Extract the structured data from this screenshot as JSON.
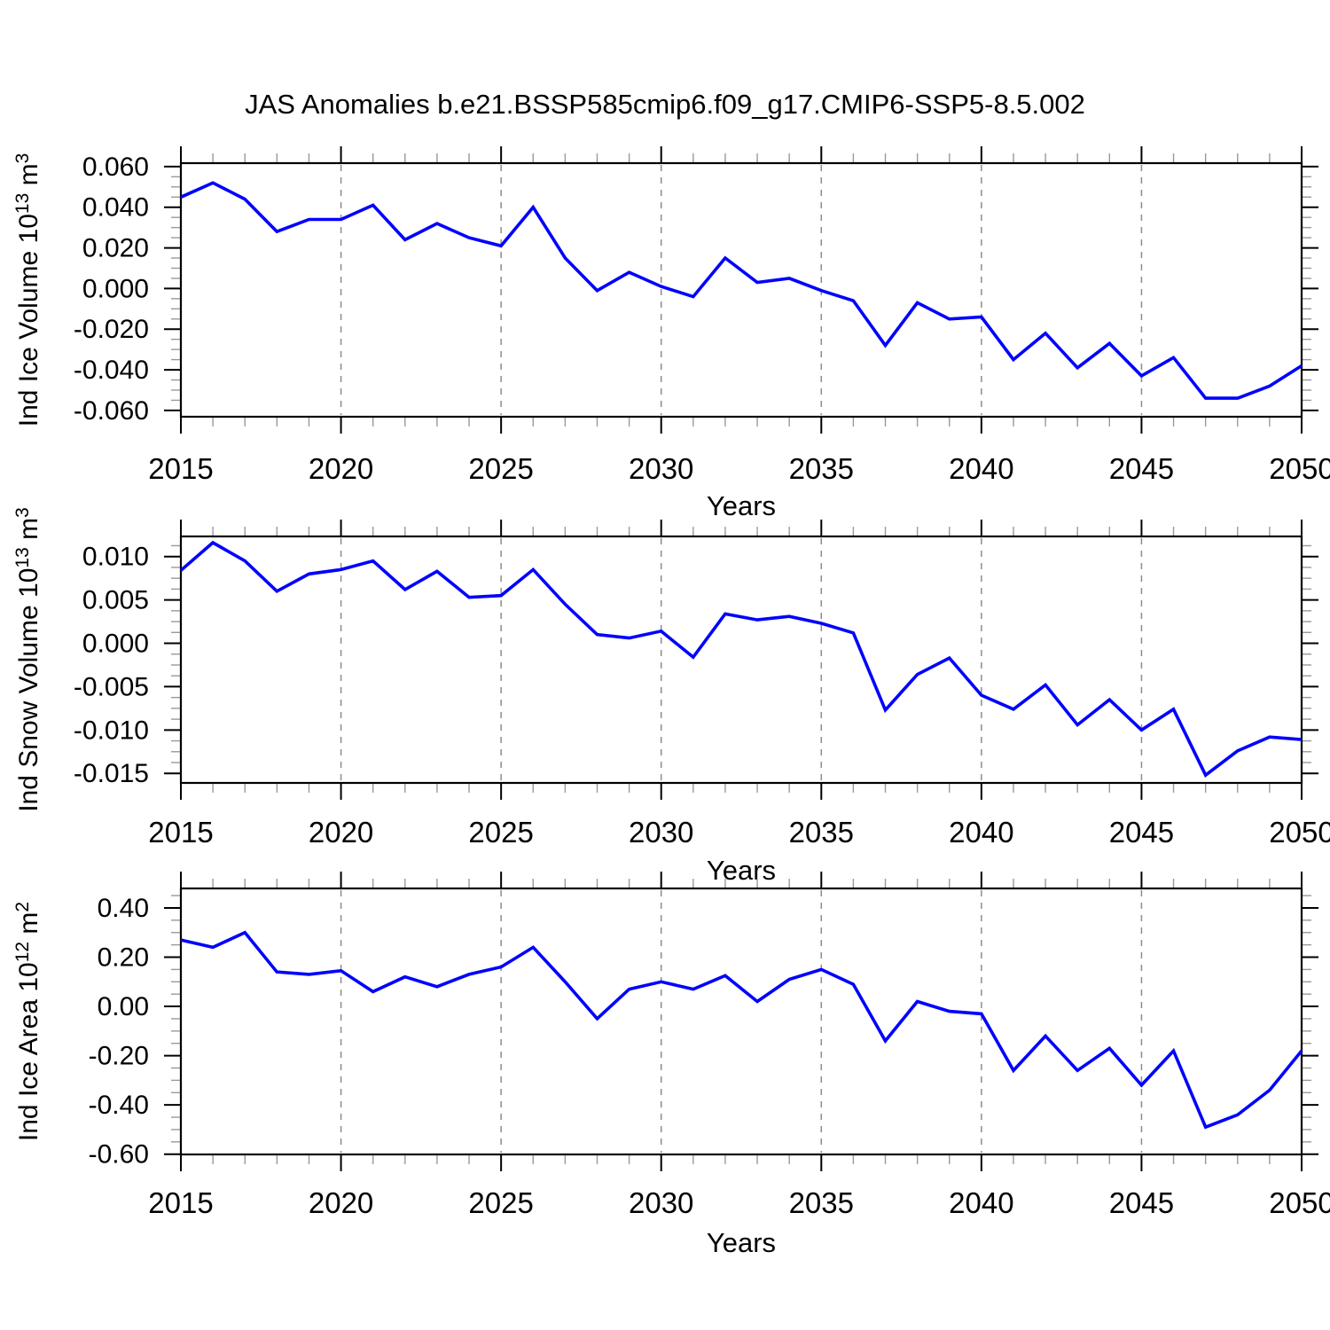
{
  "title": "JAS Anomalies b.e21.BSSP585cmip6.f09_g17.CMIP6-SSP5-8.5.002",
  "colors": {
    "line": "#0000ff",
    "frame": "#000000",
    "major_tick": "#000000",
    "minor_tick": "#999999",
    "grid_dash": "#8c8c8c",
    "text": "#000000",
    "background": "#ffffff"
  },
  "chart_data": [
    {
      "type": "line",
      "name": "ice-volume",
      "ylabel_plain": "Ind Ice Volume 10^13 m^3",
      "ylabel_parts": [
        {
          "text": "Ind Ice Volume 10",
          "sup": false
        },
        {
          "text": "13",
          "sup": true
        },
        {
          "text": " m",
          "sup": false
        },
        {
          "text": "3",
          "sup": true
        }
      ],
      "xlabel": "Years",
      "x": [
        2015,
        2016,
        2017,
        2018,
        2019,
        2020,
        2021,
        2022,
        2023,
        2024,
        2025,
        2026,
        2027,
        2028,
        2029,
        2030,
        2031,
        2032,
        2033,
        2034,
        2035,
        2036,
        2037,
        2038,
        2039,
        2040,
        2041,
        2042,
        2043,
        2044,
        2045,
        2046,
        2047,
        2048,
        2049,
        2050
      ],
      "values": [
        0.045,
        0.052,
        0.044,
        0.028,
        0.034,
        0.034,
        0.041,
        0.024,
        0.032,
        0.025,
        0.021,
        0.04,
        0.015,
        -0.001,
        0.008,
        0.001,
        -0.004,
        0.015,
        0.003,
        0.005,
        -0.001,
        -0.006,
        -0.028,
        -0.007,
        -0.015,
        -0.014,
        -0.035,
        -0.022,
        -0.039,
        -0.027,
        -0.043,
        -0.034,
        -0.054,
        -0.054,
        -0.048,
        -0.038
      ],
      "ylim": [
        -0.0631,
        0.0617
      ],
      "xlim": [
        2015,
        2050
      ],
      "yticks": [
        0.06,
        0.04,
        0.02,
        0.0,
        -0.02,
        -0.04,
        -0.06
      ],
      "ytick_labels": [
        "0.060",
        "0.040",
        "0.020",
        "0.000",
        "-0.020",
        "-0.040",
        "-0.060"
      ],
      "y_minor_step": 0.005,
      "xticks": [
        2015,
        2020,
        2025,
        2030,
        2035,
        2040,
        2045,
        2050
      ],
      "xtick_labels": [
        "2015",
        "2020",
        "2025",
        "2030",
        "2035",
        "2040",
        "2045",
        "2050"
      ],
      "grid_years": [
        2020,
        2025,
        2030,
        2035,
        2040,
        2045
      ],
      "grid": "vertical-dashed"
    },
    {
      "type": "line",
      "name": "snow-volume",
      "ylabel_plain": "Ind Snow Volume 10^13 m^3",
      "ylabel_parts": [
        {
          "text": "Ind Snow Volume 10",
          "sup": false
        },
        {
          "text": "13",
          "sup": true
        },
        {
          "text": " m",
          "sup": false
        },
        {
          "text": "3",
          "sup": true
        }
      ],
      "xlabel": "Years",
      "x": [
        2015,
        2016,
        2017,
        2018,
        2019,
        2020,
        2021,
        2022,
        2023,
        2024,
        2025,
        2026,
        2027,
        2028,
        2029,
        2030,
        2031,
        2032,
        2033,
        2034,
        2035,
        2036,
        2037,
        2038,
        2039,
        2040,
        2041,
        2042,
        2043,
        2044,
        2045,
        2046,
        2047,
        2048,
        2049,
        2050
      ],
      "values": [
        0.0084,
        0.0116,
        0.0095,
        0.006,
        0.008,
        0.0085,
        0.0095,
        0.0062,
        0.0083,
        0.0053,
        0.0055,
        0.0085,
        0.0045,
        0.001,
        0.0006,
        0.0014,
        -0.0016,
        0.0034,
        0.0027,
        0.0031,
        0.0023,
        0.0012,
        -0.0077,
        -0.0036,
        -0.0017,
        -0.006,
        -0.0076,
        -0.0048,
        -0.0094,
        -0.0065,
        -0.01,
        -0.0076,
        -0.0152,
        -0.0124,
        -0.0108,
        -0.0111
      ],
      "ylim": [
        -0.0161,
        0.01232
      ],
      "xlim": [
        2015,
        2050
      ],
      "yticks": [
        0.01,
        0.005,
        0.0,
        -0.005,
        -0.01,
        -0.015
      ],
      "ytick_labels": [
        "0.010",
        "0.005",
        "0.000",
        "-0.005",
        "-0.010",
        "-0.015"
      ],
      "y_minor_step": 0.00125,
      "xticks": [
        2015,
        2020,
        2025,
        2030,
        2035,
        2040,
        2045,
        2050
      ],
      "xtick_labels": [
        "2015",
        "2020",
        "2025",
        "2030",
        "2035",
        "2040",
        "2045",
        "2050"
      ],
      "grid_years": [
        2020,
        2025,
        2030,
        2035,
        2040,
        2045
      ],
      "grid": "vertical-dashed"
    },
    {
      "type": "line",
      "name": "ice-area",
      "ylabel_plain": "Ind Ice Area 10^12 m^2",
      "ylabel_parts": [
        {
          "text": "Ind Ice Area 10",
          "sup": false
        },
        {
          "text": "12",
          "sup": true
        },
        {
          "text": " m",
          "sup": false
        },
        {
          "text": "2",
          "sup": true
        }
      ],
      "xlabel": "Years",
      "x": [
        2015,
        2016,
        2017,
        2018,
        2019,
        2020,
        2021,
        2022,
        2023,
        2024,
        2025,
        2026,
        2027,
        2028,
        2029,
        2030,
        2031,
        2032,
        2033,
        2034,
        2035,
        2036,
        2037,
        2038,
        2039,
        2040,
        2041,
        2042,
        2043,
        2044,
        2045,
        2046,
        2047,
        2048,
        2049,
        2050
      ],
      "values": [
        0.27,
        0.24,
        0.3,
        0.14,
        0.13,
        0.145,
        0.06,
        0.12,
        0.08,
        0.13,
        0.16,
        0.24,
        0.1,
        -0.05,
        0.07,
        0.1,
        0.07,
        0.125,
        0.02,
        0.11,
        0.15,
        0.09,
        -0.14,
        0.02,
        -0.02,
        -0.03,
        -0.26,
        -0.12,
        -0.26,
        -0.17,
        -0.32,
        -0.18,
        -0.49,
        -0.44,
        -0.34,
        -0.18
      ],
      "ylim": [
        -0.601,
        0.479
      ],
      "xlim": [
        2015,
        2050
      ],
      "yticks": [
        0.4,
        0.2,
        0.0,
        -0.2,
        -0.4,
        -0.6
      ],
      "ytick_labels": [
        "0.40",
        "0.20",
        "0.00",
        "-0.20",
        "-0.40",
        "-0.60"
      ],
      "y_minor_step": 0.05,
      "xticks": [
        2015,
        2020,
        2025,
        2030,
        2035,
        2040,
        2045,
        2050
      ],
      "xtick_labels": [
        "2015",
        "2020",
        "2025",
        "2030",
        "2035",
        "2040",
        "2045",
        "2050"
      ],
      "grid_years": [
        2020,
        2025,
        2030,
        2035,
        2040,
        2045
      ],
      "grid": "vertical-dashed"
    }
  ]
}
